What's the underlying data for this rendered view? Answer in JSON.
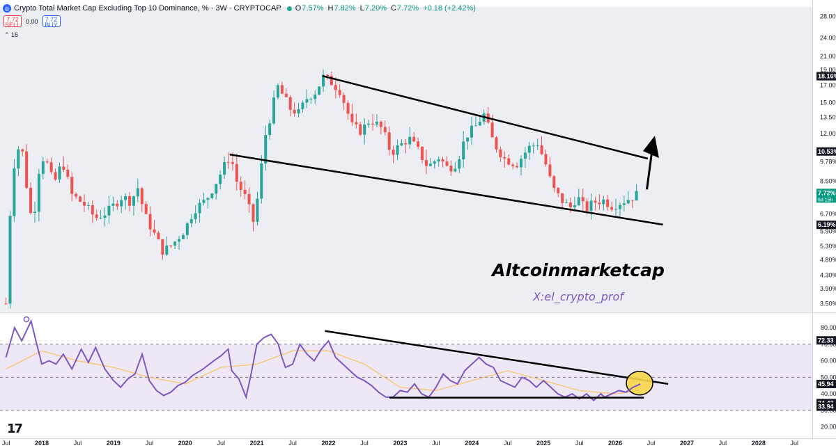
{
  "header": {
    "title": "Crypto Total Market Cap Excluding Top 10 Dominance, %  · 3W · CRYPTOCAP",
    "open_label": "O",
    "open": "7.57%",
    "high_label": "H",
    "high": "7.82%",
    "low_label": "L",
    "low": "7.20%",
    "close_label": "C",
    "close": "7.72%",
    "change": "+0.18 (+2.42%)",
    "sell_price": "7.72",
    "sell_label": "SELL",
    "spread": "0.00",
    "buy_price": "7.72",
    "buy_label": "BUY",
    "indicator_count": "16"
  },
  "watermark": {
    "main": "Altcoinmarketcap",
    "sub": "X:el_crypto_prof"
  },
  "colors": {
    "up": "#26a69a",
    "down": "#ef5350",
    "rsi": "#7e57c2",
    "rsi_ma": "#f9c56b",
    "rsi_band": "#ede7f6",
    "highlight": "#f7d64a",
    "price_tag": "#131722",
    "last_tag": "#089981"
  },
  "price_axis": {
    "ticks": [
      "28.00%",
      "24.00%",
      "21.00%",
      "19.00%",
      "17.00%",
      "15.00%",
      "13.50%",
      "12.00%",
      "9.78%",
      "8.50%",
      "6.70%",
      "5.90%",
      "5.30%",
      "4.80%",
      "4.30%",
      "3.90%",
      "3.50%"
    ],
    "tags": [
      {
        "value": "18.16%",
        "y": 18.16
      },
      {
        "value": "10.53%",
        "y": 10.53
      },
      {
        "value": "6.19%",
        "y": 6.19
      }
    ],
    "last_value": "7.72%",
    "last_sub": "6d 15h"
  },
  "rsi_axis": {
    "ticks": [
      "80.00",
      "70.00",
      "60.00",
      "50.00",
      "40.00",
      "30.00",
      "20.00"
    ],
    "tags": [
      {
        "value": "72.33",
        "y": 72.33
      },
      {
        "value": "45.94",
        "y": 45.94
      },
      {
        "value": "34.43",
        "y": 34.43
      },
      {
        "value": "33.94",
        "y": 33.94
      }
    ]
  },
  "time_axis": {
    "labels": [
      "Jul",
      "2018",
      "Jul",
      "2019",
      "Jul",
      "2020",
      "Jul",
      "2021",
      "Jul",
      "2022",
      "Jul",
      "2023",
      "Jul",
      "2024",
      "Jul",
      "2025",
      "Jul",
      "2026",
      "Jul",
      "2027",
      "Jul",
      "2028",
      "Jul"
    ]
  },
  "chart_data": [
    {
      "type": "candlestick",
      "title": "Crypto Total Market Cap Excluding Top 10 Dominance, %",
      "yscale": "log",
      "ylim": [
        3.3,
        30
      ],
      "x_range": [
        "2017-06-01",
        "2028-10-01"
      ],
      "series_close": [
        [
          "2017-07-01",
          3.5
        ],
        [
          "2017-08-01",
          9.0
        ],
        [
          "2017-09-15",
          11.5
        ],
        [
          "2017-10-15",
          8.2
        ],
        [
          "2017-11-15",
          6.1
        ],
        [
          "2017-12-20",
          9.6
        ],
        [
          "2018-01-15",
          10.2
        ],
        [
          "2018-03-01",
          8.3
        ],
        [
          "2018-04-15",
          9.8
        ],
        [
          "2018-06-01",
          7.7
        ],
        [
          "2018-08-01",
          7.2
        ],
        [
          "2018-10-01",
          6.5
        ],
        [
          "2018-12-01",
          6.8
        ],
        [
          "2019-02-15",
          7.6
        ],
        [
          "2019-04-01",
          7.3
        ],
        [
          "2019-05-01",
          8.2
        ],
        [
          "2019-06-10",
          6.6
        ],
        [
          "2019-08-01",
          5.7
        ],
        [
          "2019-09-10",
          5.1
        ],
        [
          "2019-11-01",
          5.4
        ],
        [
          "2020-01-01",
          6.0
        ],
        [
          "2020-02-15",
          6.9
        ],
        [
          "2020-04-15",
          7.4
        ],
        [
          "2020-06-01",
          8.3
        ],
        [
          "2020-07-15",
          9.4
        ],
        [
          "2020-08-20",
          10.3
        ],
        [
          "2020-09-15",
          8.6
        ],
        [
          "2020-11-01",
          7.6
        ],
        [
          "2020-12-15",
          6.3
        ],
        [
          "2021-01-10",
          7.9
        ],
        [
          "2021-02-10",
          11.6
        ],
        [
          "2021-03-15",
          14.0
        ],
        [
          "2021-04-15",
          16.9
        ],
        [
          "2021-05-20",
          15.5
        ],
        [
          "2021-06-15",
          14.4
        ],
        [
          "2021-08-01",
          13.9
        ],
        [
          "2021-09-15",
          15.6
        ],
        [
          "2021-11-01",
          16.3
        ],
        [
          "2021-12-01",
          18.1
        ],
        [
          "2022-01-15",
          17.4
        ],
        [
          "2022-03-01",
          16.3
        ],
        [
          "2022-05-01",
          12.6
        ],
        [
          "2022-06-15",
          12.2
        ],
        [
          "2022-08-01",
          13.3
        ],
        [
          "2022-10-01",
          12.4
        ],
        [
          "2022-11-15",
          10.4
        ],
        [
          "2023-01-01",
          11.0
        ],
        [
          "2023-02-15",
          11.6
        ],
        [
          "2023-04-01",
          10.6
        ],
        [
          "2023-05-20",
          9.4
        ],
        [
          "2023-07-15",
          10.1
        ],
        [
          "2023-09-01",
          9.3
        ],
        [
          "2023-10-15",
          9.7
        ],
        [
          "2023-12-01",
          11.8
        ],
        [
          "2024-01-15",
          12.5
        ],
        [
          "2024-03-01",
          13.8
        ],
        [
          "2024-04-20",
          11.2
        ],
        [
          "2024-06-15",
          10.0
        ],
        [
          "2024-08-15",
          9.6
        ],
        [
          "2024-10-15",
          10.8
        ],
        [
          "2024-12-01",
          11.2
        ],
        [
          "2025-01-15",
          9.5
        ],
        [
          "2025-02-15",
          8.1
        ],
        [
          "2025-04-01",
          7.4
        ],
        [
          "2025-05-15",
          7.0
        ],
        [
          "2025-06-20",
          7.6
        ],
        [
          "2025-08-01",
          6.9
        ],
        [
          "2025-09-15",
          7.3
        ],
        [
          "2025-11-01",
          7.4
        ],
        [
          "2025-12-15",
          7.1
        ],
        [
          "2026-02-01",
          7.3
        ],
        [
          "2026-03-15",
          7.5
        ],
        [
          "2026-04-20",
          7.72
        ]
      ],
      "annotations": {
        "upper_trendline": [
          [
            "2021-12-01",
            18.2
          ],
          [
            "2026-06-15",
            10.0
          ]
        ],
        "lower_trendline": [
          [
            "2020-08-15",
            10.3
          ],
          [
            "2026-09-01",
            6.2
          ]
        ],
        "arrow": [
          [
            "2026-06-10",
            8.0
          ],
          [
            "2026-07-20",
            11.8
          ]
        ]
      }
    },
    {
      "type": "line",
      "title": "RSI",
      "ylim": [
        14,
        88
      ],
      "bands": [
        30,
        70
      ],
      "series": [
        {
          "values": [
            [
              2017.5,
              62
            ],
            [
              2017.62,
              80
            ],
            [
              2017.72,
              72
            ],
            [
              2017.85,
              84
            ],
            [
              2017.93,
              70
            ],
            [
              2018.0,
              58
            ],
            [
              2018.1,
              60
            ],
            [
              2018.2,
              58
            ],
            [
              2018.3,
              64
            ],
            [
              2018.42,
              55
            ],
            [
              2018.55,
              67
            ],
            [
              2018.65,
              59
            ],
            [
              2018.75,
              68
            ],
            [
              2018.88,
              55
            ],
            [
              2019.0,
              48
            ],
            [
              2019.1,
              44
            ],
            [
              2019.2,
              49
            ],
            [
              2019.3,
              52
            ],
            [
              2019.4,
              64
            ],
            [
              2019.5,
              48
            ],
            [
              2019.6,
              42
            ],
            [
              2019.7,
              39
            ],
            [
              2019.8,
              41
            ],
            [
              2019.9,
              45
            ],
            [
              2020.0,
              47
            ],
            [
              2020.1,
              51
            ],
            [
              2020.25,
              55
            ],
            [
              2020.4,
              60
            ],
            [
              2020.5,
              63
            ],
            [
              2020.6,
              67
            ],
            [
              2020.65,
              54
            ],
            [
              2020.75,
              49
            ],
            [
              2020.85,
              38
            ],
            [
              2020.92,
              52
            ],
            [
              2021.0,
              70
            ],
            [
              2021.1,
              74
            ],
            [
              2021.2,
              76
            ],
            [
              2021.3,
              70
            ],
            [
              2021.35,
              62
            ],
            [
              2021.4,
              56
            ],
            [
              2021.5,
              58
            ],
            [
              2021.6,
              70
            ],
            [
              2021.7,
              64
            ],
            [
              2021.8,
              60
            ],
            [
              2021.9,
              67
            ],
            [
              2022.0,
              72
            ],
            [
              2022.1,
              62
            ],
            [
              2022.2,
              58
            ],
            [
              2022.3,
              54
            ],
            [
              2022.4,
              50
            ],
            [
              2022.5,
              48
            ],
            [
              2022.6,
              45
            ],
            [
              2022.7,
              41
            ],
            [
              2022.8,
              38
            ],
            [
              2022.9,
              38
            ],
            [
              2023.0,
              42
            ],
            [
              2023.1,
              41
            ],
            [
              2023.2,
              46
            ],
            [
              2023.3,
              40
            ],
            [
              2023.4,
              38
            ],
            [
              2023.5,
              44
            ],
            [
              2023.6,
              52
            ],
            [
              2023.7,
              48
            ],
            [
              2023.8,
              46
            ],
            [
              2023.9,
              54
            ],
            [
              2024.0,
              58
            ],
            [
              2024.1,
              62
            ],
            [
              2024.2,
              58
            ],
            [
              2024.3,
              56
            ],
            [
              2024.4,
              48
            ],
            [
              2024.5,
              46
            ],
            [
              2024.6,
              44
            ],
            [
              2024.7,
              50
            ],
            [
              2024.8,
              48
            ],
            [
              2024.9,
              44
            ],
            [
              2025.0,
              48
            ],
            [
              2025.1,
              44
            ],
            [
              2025.2,
              40
            ],
            [
              2025.3,
              38
            ],
            [
              2025.4,
              40
            ],
            [
              2025.5,
              37
            ],
            [
              2025.6,
              40
            ],
            [
              2025.7,
              36
            ],
            [
              2025.8,
              40
            ],
            [
              2025.85,
              38
            ],
            [
              2025.95,
              40
            ],
            [
              2026.05,
              42
            ],
            [
              2026.15,
              41
            ],
            [
              2026.25,
              44
            ],
            [
              2026.35,
              45.94
            ]
          ]
        },
        {
          "values": [
            [
              2017.5,
              55
            ],
            [
              2018.0,
              66
            ],
            [
              2018.5,
              60
            ],
            [
              2019.0,
              56
            ],
            [
              2019.5,
              50
            ],
            [
              2020.0,
              46
            ],
            [
              2020.5,
              56
            ],
            [
              2021.0,
              58
            ],
            [
              2021.5,
              66
            ],
            [
              2022.0,
              66
            ],
            [
              2022.5,
              58
            ],
            [
              2023.0,
              44
            ],
            [
              2023.5,
              42
            ],
            [
              2024.0,
              48
            ],
            [
              2024.5,
              54
            ],
            [
              2025.0,
              48
            ],
            [
              2025.5,
              42
            ],
            [
              2026.0,
              40
            ],
            [
              2026.35,
              42
            ]
          ]
        }
      ],
      "annotations": {
        "upper_trendline": [
          [
            2021.95,
            78
          ],
          [
            2026.35,
            46
          ]
        ],
        "lower_trendline": [
          [
            2022.85,
            37.7
          ],
          [
            2026.4,
            37.7
          ]
        ],
        "highlight_circle": [
          2026.34,
          46.5
        ]
      }
    }
  ]
}
